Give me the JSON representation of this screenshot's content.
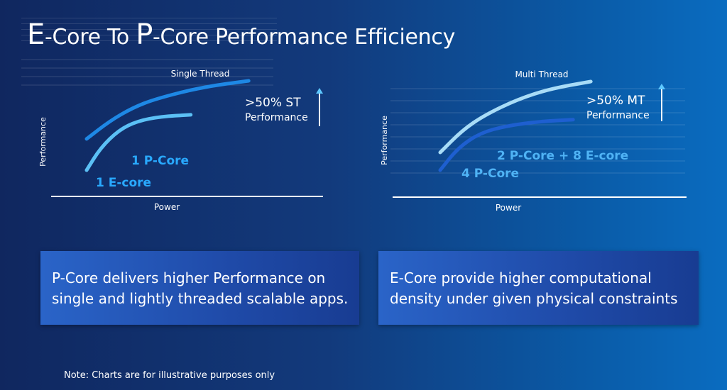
{
  "title": {
    "big1": "E",
    "rest1": "-Core To ",
    "big2": "P",
    "rest2": "-Core Performance Efficiency"
  },
  "chart_data": [
    {
      "type": "line",
      "title": "Single Thread",
      "xlabel": "Power",
      "ylabel": "Performance",
      "series": [
        {
          "name": "1 P-Core",
          "color": "#1e88e5",
          "points": [
            [
              0.0,
              0.35
            ],
            [
              0.1,
              0.55
            ],
            [
              0.2,
              0.7
            ],
            [
              0.3,
              0.8
            ],
            [
              0.5,
              0.93
            ],
            [
              0.7,
              1.0
            ]
          ]
        },
        {
          "name": "1 E-core",
          "color": "#5bc0f5",
          "points": [
            [
              0.0,
              0.0
            ],
            [
              0.06,
              0.25
            ],
            [
              0.14,
              0.45
            ],
            [
              0.22,
              0.55
            ],
            [
              0.32,
              0.6
            ],
            [
              0.45,
              0.62
            ]
          ]
        }
      ],
      "annotation": {
        "line1": ">50% ST",
        "line2": "Performance"
      }
    },
    {
      "type": "line",
      "title": "Multi Thread",
      "xlabel": "Power",
      "ylabel": "Performance",
      "series": [
        {
          "name": "2 P-Core + 8 E-core",
          "color": "#a8dcf7",
          "points": [
            [
              0.0,
              0.2
            ],
            [
              0.1,
              0.45
            ],
            [
              0.2,
              0.62
            ],
            [
              0.35,
              0.8
            ],
            [
              0.5,
              0.92
            ],
            [
              0.68,
              1.0
            ]
          ]
        },
        {
          "name": "4 P-Core",
          "color": "#1e5fd0",
          "points": [
            [
              0.0,
              0.0
            ],
            [
              0.08,
              0.25
            ],
            [
              0.18,
              0.42
            ],
            [
              0.3,
              0.5
            ],
            [
              0.45,
              0.55
            ],
            [
              0.6,
              0.57
            ]
          ]
        }
      ],
      "annotation": {
        "line1": ">50% MT",
        "line2": "Performance"
      }
    }
  ],
  "boxes": {
    "left": "P-Core delivers higher Performance on single and lightly threaded scalable apps.",
    "right": "E-Core provide higher computational density under given physical constraints"
  },
  "note": "Note: Charts are for illustrative purposes only"
}
